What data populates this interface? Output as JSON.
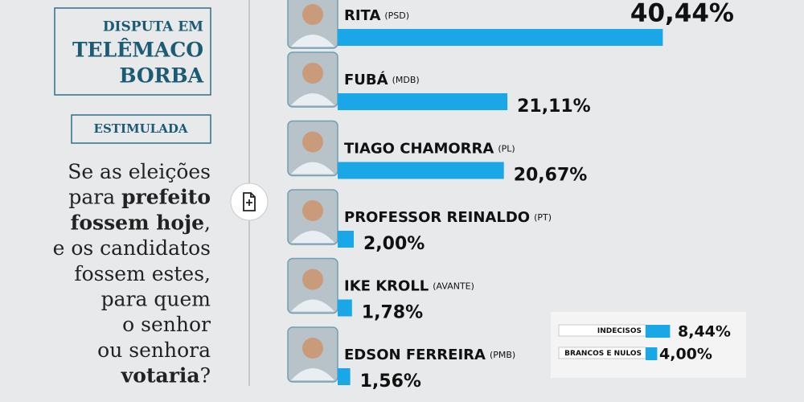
{
  "header": {
    "title_lines": [
      "DISPUTA EM",
      "TELÊMACO",
      "BORBA"
    ],
    "tag": "ESTIMULADA"
  },
  "question": [
    [
      {
        "text": "Se as eleições"
      }
    ],
    [
      {
        "text": "para "
      },
      {
        "text": "prefeito",
        "bold": true
      }
    ],
    [
      {
        "text": "fossem hoje",
        "bold": true
      },
      {
        "text": ","
      }
    ],
    [
      {
        "text": "e os candidatos"
      }
    ],
    [
      {
        "text": "fossem estes,"
      }
    ],
    [
      {
        "text": "para quem"
      }
    ],
    [
      {
        "text": "o senhor"
      }
    ],
    [
      {
        "text": "ou senhora"
      }
    ],
    [
      {
        "text": "votaria",
        "bold": true
      },
      {
        "text": "?"
      }
    ]
  ],
  "chart_data": [
    {
      "type": "bar",
      "orientation": "horizontal",
      "color": "#1aa7e8",
      "categories": [
        "RITA",
        "FUBÁ",
        "TIAGO CHAMORRA",
        "PROFESSOR REINALDO",
        "IKE KROLL",
        "EDSON FERREIRA"
      ],
      "parties": [
        "(PSD)",
        "(MDB)",
        "(PL)",
        "(PT)",
        "(AVANTE)",
        "(PMB)"
      ],
      "values": [
        40.44,
        21.11,
        20.67,
        2.0,
        1.78,
        1.56
      ],
      "value_labels": [
        "40,44%",
        "21,11%",
        "20,67%",
        "2,00%",
        "1,78%",
        "1,56%"
      ]
    },
    {
      "type": "bar",
      "orientation": "horizontal",
      "color": "#1aa7e8",
      "categories": [
        "INDECISOS",
        "BRANCOS E NULOS"
      ],
      "values": [
        8.44,
        4.0
      ],
      "value_labels": [
        "8,44%",
        "4,00%"
      ]
    }
  ]
}
